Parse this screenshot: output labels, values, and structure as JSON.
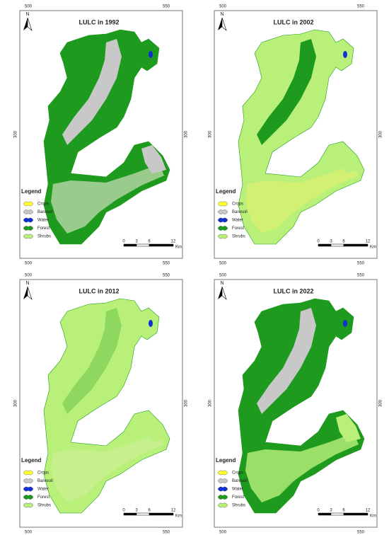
{
  "panels": [
    {
      "title": "LULC in 1992",
      "north": "N",
      "x_labels": [
        "500",
        "550"
      ],
      "y_label": "300",
      "legend": {
        "title": "Legend",
        "items": [
          {
            "label": "Crops",
            "color": "#ffff33"
          },
          {
            "label": "Baresoil",
            "color": "#c8c8c8"
          },
          {
            "label": "Water",
            "color": "#1030d0"
          },
          {
            "label": "Forest",
            "color": "#1e9a1e"
          },
          {
            "label": "Shrubs",
            "color": "#b8f07a"
          }
        ]
      },
      "scale": {
        "ticks": [
          "0",
          "3",
          "6",
          "12"
        ],
        "unit": "Km"
      }
    },
    {
      "title": "LULC in 2002",
      "north": "N",
      "x_labels": [
        "500",
        "550"
      ],
      "y_label": "300",
      "legend": {
        "title": "Legend",
        "items": [
          {
            "label": "Crops",
            "color": "#ffff33"
          },
          {
            "label": "Baresoil",
            "color": "#c8c8c8"
          },
          {
            "label": "Water",
            "color": "#1030d0"
          },
          {
            "label": "Forest",
            "color": "#1e9a1e"
          },
          {
            "label": "Shrubs",
            "color": "#b8f07a"
          }
        ]
      },
      "scale": {
        "ticks": [
          "0",
          "3",
          "6",
          "12"
        ],
        "unit": "Km"
      }
    },
    {
      "title": "LULC in 2012",
      "north": "N",
      "x_labels": [
        "500",
        "550"
      ],
      "y_label": "300",
      "legend": {
        "title": "Legend",
        "items": [
          {
            "label": "Crops",
            "color": "#ffff33"
          },
          {
            "label": "Baresoil",
            "color": "#c8c8c8"
          },
          {
            "label": "Water",
            "color": "#1030d0"
          },
          {
            "label": "Forest",
            "color": "#1e9a1e"
          },
          {
            "label": "Shrubs",
            "color": "#b8f07a"
          }
        ]
      },
      "scale": {
        "ticks": [
          "0",
          "3",
          "6",
          "12"
        ],
        "unit": "Km"
      }
    },
    {
      "title": "LULC in 2022",
      "north": "N",
      "x_labels": [
        "500",
        "550"
      ],
      "y_label": "300",
      "legend": {
        "title": "Legend",
        "items": [
          {
            "label": "Crops",
            "color": "#ffff33"
          },
          {
            "label": "Baresoil",
            "color": "#c8c8c8"
          },
          {
            "label": "Water",
            "color": "#1030d0"
          },
          {
            "label": "Forest",
            "color": "#1e9a1e"
          },
          {
            "label": "Shrubs",
            "color": "#b8f07a"
          }
        ]
      },
      "scale": {
        "ticks": [
          "0",
          "3",
          "6",
          "12"
        ],
        "unit": "Km"
      }
    }
  ]
}
